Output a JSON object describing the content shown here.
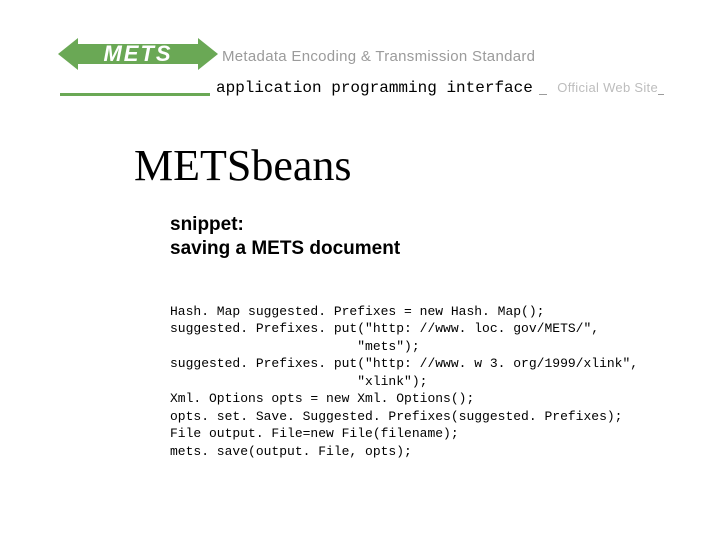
{
  "header": {
    "logo_text": "METS",
    "tagline": "Metadata Encoding & Transmission Standard",
    "subtitle": "application programming interface",
    "official": "Official Web Site",
    "colors": {
      "brand_green": "#6aa855",
      "tagline_gray": "#9b9b9b",
      "official_gray": "#bdbdbd"
    }
  },
  "content": {
    "title": "METSbeans",
    "snippet_label_line1": "snippet:",
    "snippet_label_line2": "saving a METS document",
    "code_lines": [
      "Hash. Map suggested. Prefixes = new Hash. Map();",
      "suggested. Prefixes. put(\"http: //www. loc. gov/METS/\",",
      "                        \"mets\");",
      "suggested. Prefixes. put(\"http: //www. w 3. org/1999/xlink\",",
      "                        \"xlink\");",
      "Xml. Options opts = new Xml. Options();",
      "opts. set. Save. Suggested. Prefixes(suggested. Prefixes);",
      "File output. File=new File(filename);",
      "mets. save(output. File, opts);"
    ]
  }
}
